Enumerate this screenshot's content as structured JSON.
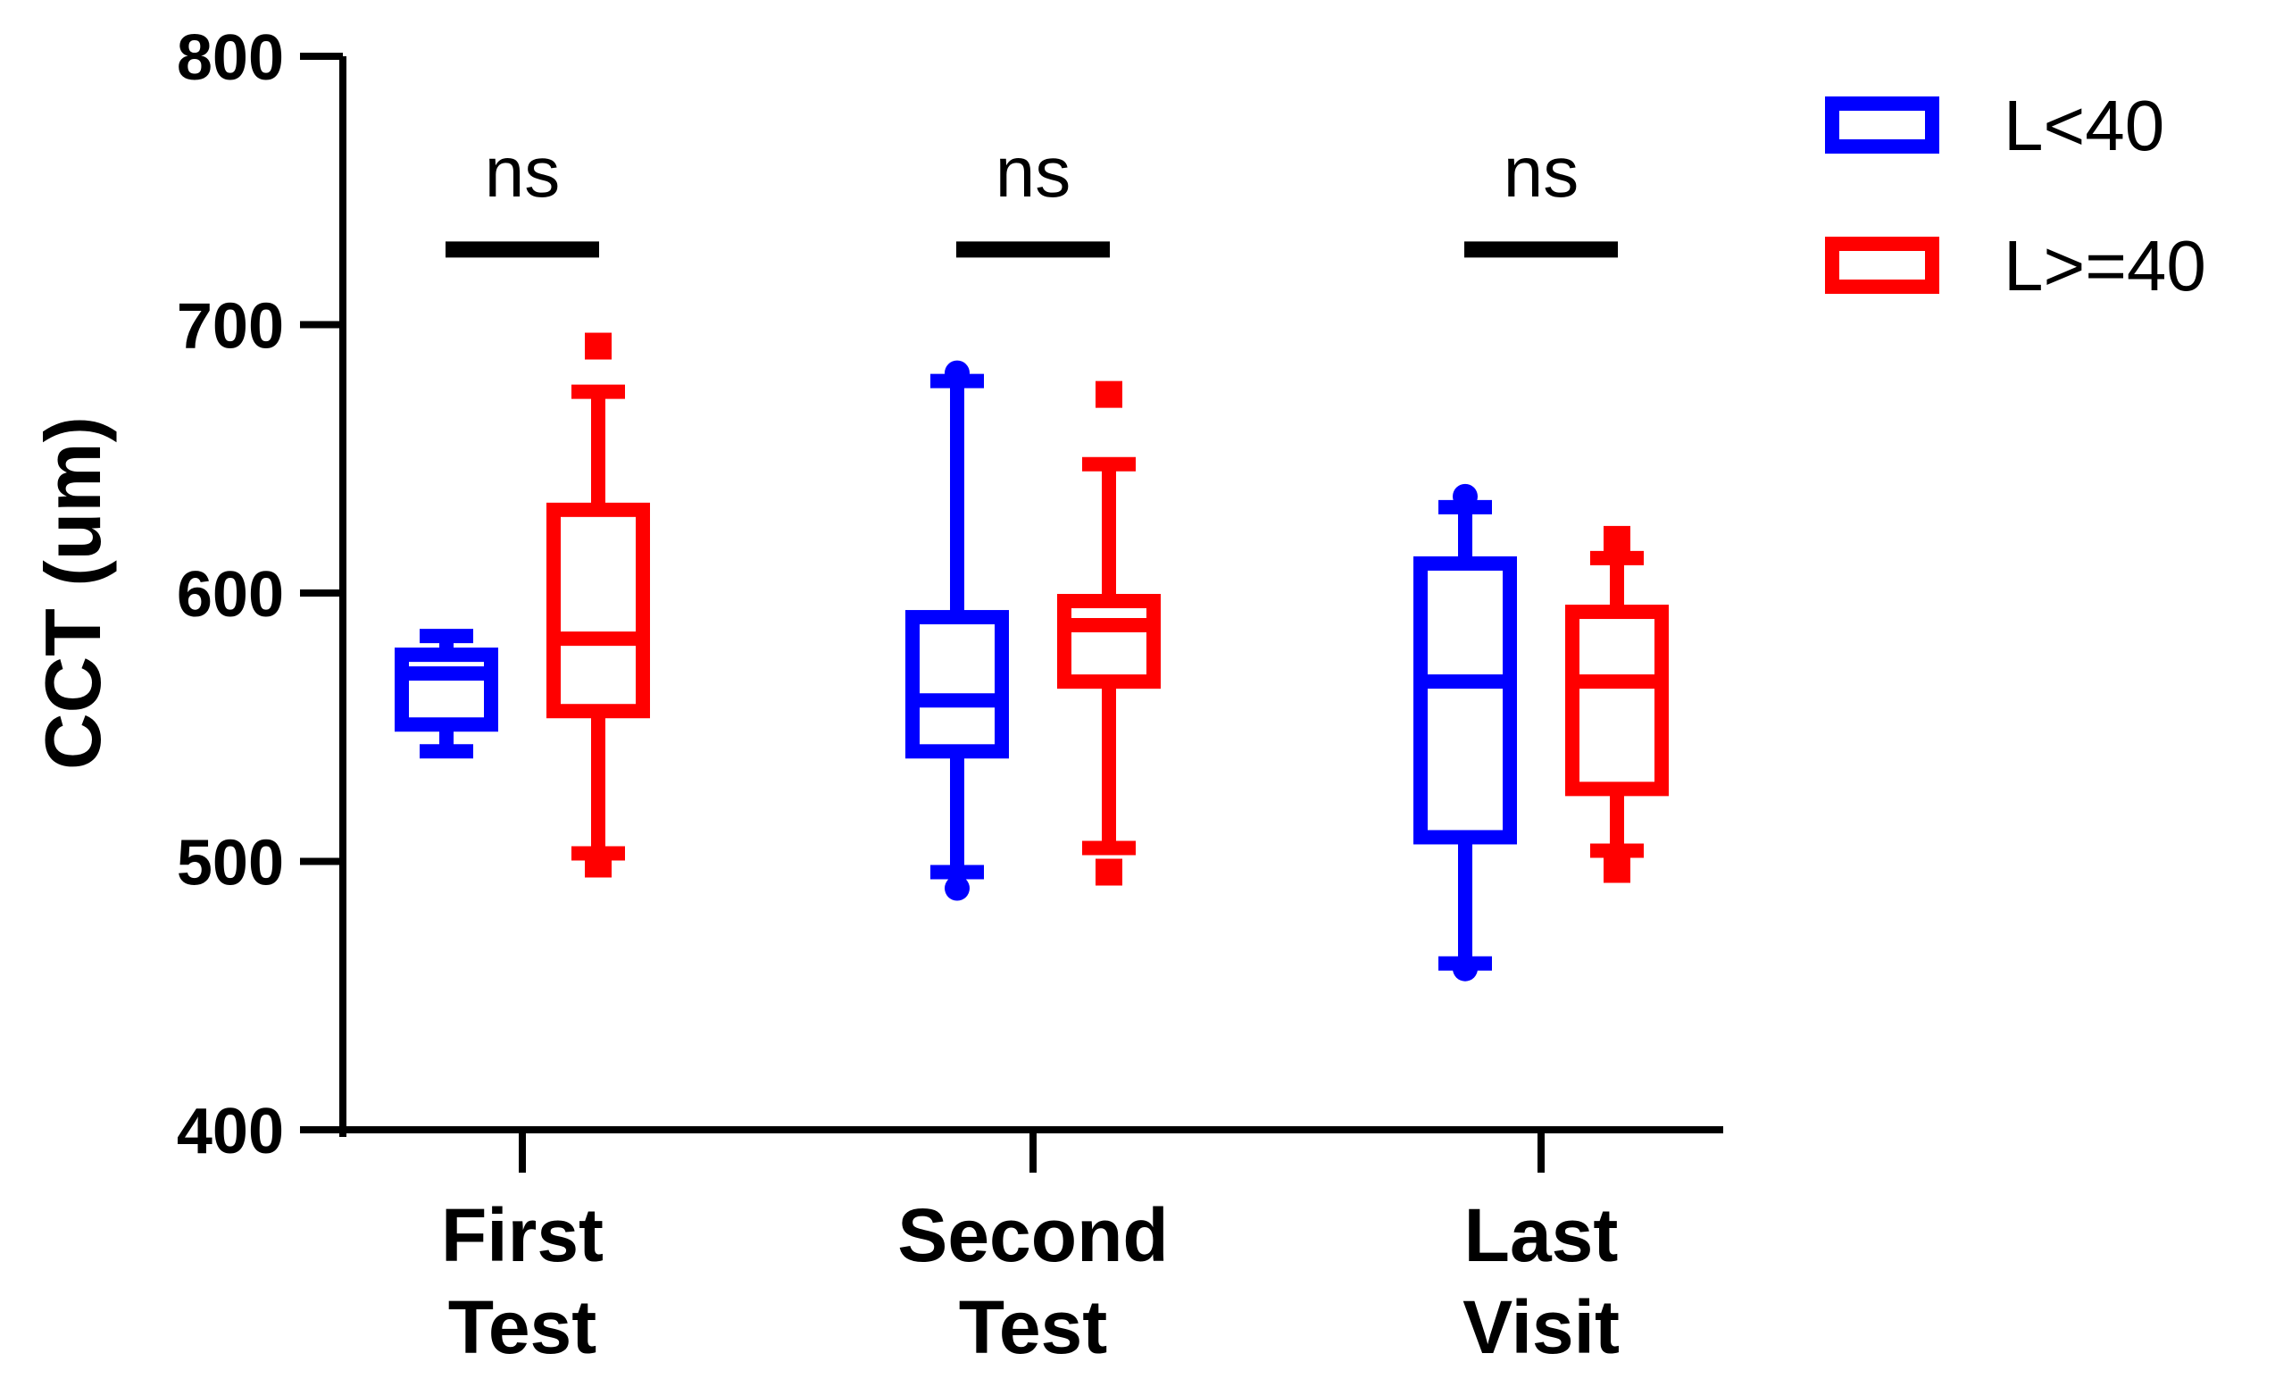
{
  "chart_data": {
    "type": "box",
    "ylabel": "CCT (um)",
    "xlabel": "",
    "ylim": [
      400,
      800
    ],
    "yticks": [
      400,
      500,
      600,
      700,
      800
    ],
    "ytick_labels": [
      "400",
      "500",
      "600",
      "700",
      "800"
    ],
    "categories": [
      {
        "line1": "First",
        "line2": "Test"
      },
      {
        "line1": "Second",
        "line2": "Test"
      },
      {
        "line1": "Last",
        "line2": "Visit"
      }
    ],
    "legend_position": "top-right",
    "series": [
      {
        "name": "L<40",
        "color": "#0000ff",
        "marker": "circle",
        "boxes": [
          {
            "whisker_low": 541,
            "q1": 551,
            "median": 570,
            "q3": 577,
            "whisker_high": 584,
            "outliers": []
          },
          {
            "whisker_low": 496,
            "q1": 541,
            "median": 560,
            "q3": 591,
            "whisker_high": 679,
            "outliers": [
              490,
              682
            ]
          },
          {
            "whisker_low": 462,
            "q1": 509,
            "median": 567,
            "q3": 611,
            "whisker_high": 632,
            "outliers": [
              460,
              636
            ]
          }
        ]
      },
      {
        "name": "L>=40",
        "color": "#ff0000",
        "marker": "square",
        "boxes": [
          {
            "whisker_low": 503,
            "q1": 556,
            "median": 583,
            "q3": 631,
            "whisker_high": 675,
            "outliers": [
              499,
              692
            ]
          },
          {
            "whisker_low": 505,
            "q1": 567,
            "median": 588,
            "q3": 597,
            "whisker_high": 648,
            "outliers": [
              496,
              674
            ]
          },
          {
            "whisker_low": 504,
            "q1": 527,
            "median": 567,
            "q3": 593,
            "whisker_high": 613,
            "outliers": [
              497,
              620
            ]
          }
        ]
      }
    ],
    "significance": [
      {
        "category_index": 0,
        "label": "ns",
        "level": 728
      },
      {
        "category_index": 1,
        "label": "ns",
        "level": 728
      },
      {
        "category_index": 2,
        "label": "ns",
        "level": 728
      }
    ]
  }
}
